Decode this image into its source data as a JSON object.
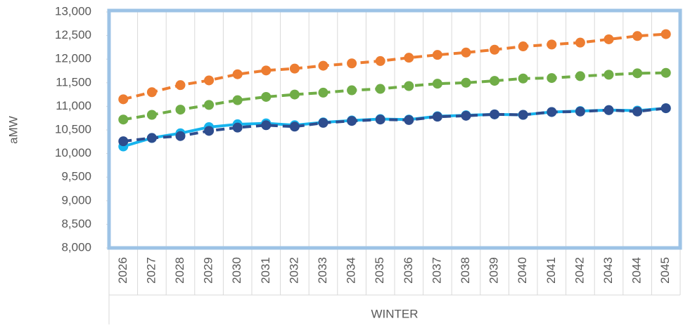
{
  "chart_data": {
    "type": "line",
    "y_label": "aMW",
    "x_group_label": "WINTER",
    "categories": [
      "2026",
      "2027",
      "2028",
      "2029",
      "2030",
      "2031",
      "2032",
      "2033",
      "2034",
      "2035",
      "2036",
      "2037",
      "2038",
      "2039",
      "2040",
      "2041",
      "2042",
      "2043",
      "2044",
      "2045"
    ],
    "series": [
      {
        "color": "#ed7d31",
        "dashed": true,
        "values": [
          11150,
          11300,
          11450,
          11550,
          11680,
          11760,
          11800,
          11860,
          11910,
          11960,
          12030,
          12090,
          12140,
          12200,
          12270,
          12310,
          12350,
          12420,
          12490,
          12530
        ]
      },
      {
        "color": "#70ad47",
        "dashed": true,
        "values": [
          10720,
          10820,
          10930,
          11030,
          11130,
          11200,
          11250,
          11290,
          11340,
          11370,
          11430,
          11480,
          11500,
          11540,
          11590,
          11600,
          11640,
          11670,
          11700,
          11710
        ]
      },
      {
        "color": "#16b4ee",
        "dashed": false,
        "values": [
          10150,
          10330,
          10430,
          10560,
          10620,
          10640,
          10600,
          10660,
          10700,
          10730,
          10720,
          10790,
          10810,
          10830,
          10820,
          10880,
          10900,
          10920,
          10910,
          10960
        ]
      },
      {
        "color": "#2e4d8e",
        "dashed": true,
        "values": [
          10260,
          10330,
          10370,
          10480,
          10550,
          10600,
          10570,
          10650,
          10690,
          10720,
          10710,
          10780,
          10800,
          10830,
          10820,
          10880,
          10890,
          10920,
          10890,
          10960
        ]
      }
    ],
    "ylim": [
      8000,
      13000
    ],
    "yticks": [
      {
        "value": 8000,
        "label": "8,000"
      },
      {
        "value": 8500,
        "label": "8,500"
      },
      {
        "value": 9000,
        "label": "9,000"
      },
      {
        "value": 9500,
        "label": "9,500"
      },
      {
        "value": 10000,
        "label": "10,000"
      },
      {
        "value": 10500,
        "label": "10,500"
      },
      {
        "value": 11000,
        "label": "11,000"
      },
      {
        "value": 11500,
        "label": "11,500"
      },
      {
        "value": 12000,
        "label": "12,000"
      },
      {
        "value": 12500,
        "label": "12,500"
      },
      {
        "value": 13000,
        "label": "13,000"
      }
    ],
    "x_grid": true
  }
}
